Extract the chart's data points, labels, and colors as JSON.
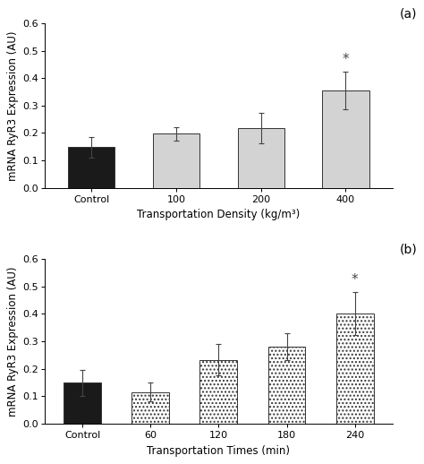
{
  "panel_a": {
    "categories": [
      "Control",
      "100",
      "200",
      "400"
    ],
    "values": [
      0.148,
      0.197,
      0.218,
      0.355
    ],
    "errors": [
      0.038,
      0.025,
      0.055,
      0.07
    ],
    "colors": [
      "#1a1a1a",
      "#d3d3d3",
      "#d3d3d3",
      "#d3d3d3"
    ],
    "patterns": [
      null,
      null,
      null,
      null
    ],
    "xlabel": "Transportation Density (kg/m³)",
    "ylabel": "mRNA RyR3 Expression (AU)",
    "ylim": [
      0,
      0.6
    ],
    "yticks": [
      0,
      0.1,
      0.2,
      0.3,
      0.4,
      0.5,
      0.6
    ],
    "label": "(a)",
    "star_index": 3
  },
  "panel_b": {
    "categories": [
      "Control",
      "60",
      "120",
      "180",
      "240"
    ],
    "values": [
      0.148,
      0.115,
      0.232,
      0.28,
      0.402
    ],
    "errors": [
      0.048,
      0.035,
      0.057,
      0.05,
      0.078
    ],
    "colors": [
      "#1a1a1a",
      "white",
      "white",
      "white",
      "white"
    ],
    "patterns": [
      null,
      "....",
      "....",
      "....",
      "...."
    ],
    "xlabel": "Transportation Times (min)",
    "ylabel": "mRNA RyR3 Expression (AU)",
    "ylim": [
      0,
      0.6
    ],
    "yticks": [
      0,
      0.1,
      0.2,
      0.3,
      0.4,
      0.5,
      0.6
    ],
    "label": "(b)",
    "star_index": 4
  },
  "bar_width": 0.55,
  "edgecolor": "#333333",
  "fontsize_labels": 8.5,
  "fontsize_ticks": 8,
  "fontsize_panel_label": 10,
  "fontsize_star": 11
}
